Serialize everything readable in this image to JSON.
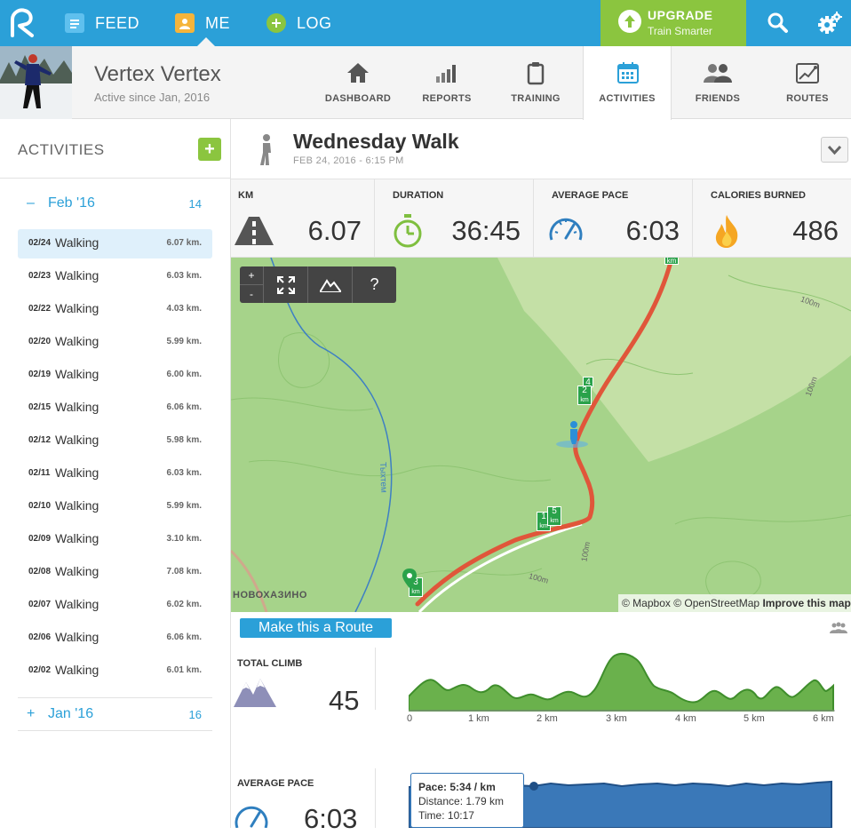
{
  "nav": {
    "feed": "FEED",
    "me": "ME",
    "log": "LOG",
    "upgrade_title": "UPGRADE",
    "upgrade_sub": "Train Smarter"
  },
  "profile": {
    "name": "Vertex Vertex",
    "since": "Active since Jan, 2016"
  },
  "tabs": [
    "DASHBOARD",
    "REPORTS",
    "TRAINING",
    "ACTIVITIES",
    "FRIENDS",
    "ROUTES"
  ],
  "sidebar": {
    "title": "ACTIVITIES",
    "add": "+",
    "feb_label": "Feb '16",
    "feb_count": "14",
    "jan_label": "Jan '16",
    "jan_count": "16",
    "activities": [
      {
        "date": "02/24",
        "type": "Walking",
        "dist": "6.07 km."
      },
      {
        "date": "02/23",
        "type": "Walking",
        "dist": "6.03 km."
      },
      {
        "date": "02/22",
        "type": "Walking",
        "dist": "4.03 km."
      },
      {
        "date": "02/20",
        "type": "Walking",
        "dist": "5.99 km."
      },
      {
        "date": "02/19",
        "type": "Walking",
        "dist": "6.00 km."
      },
      {
        "date": "02/15",
        "type": "Walking",
        "dist": "6.06 km."
      },
      {
        "date": "02/12",
        "type": "Walking",
        "dist": "5.98 km."
      },
      {
        "date": "02/11",
        "type": "Walking",
        "dist": "6.03 km."
      },
      {
        "date": "02/10",
        "type": "Walking",
        "dist": "5.99 km."
      },
      {
        "date": "02/09",
        "type": "Walking",
        "dist": "3.10 km."
      },
      {
        "date": "02/08",
        "type": "Walking",
        "dist": "7.08 km."
      },
      {
        "date": "02/07",
        "type": "Walking",
        "dist": "6.02 km."
      },
      {
        "date": "02/06",
        "type": "Walking",
        "dist": "6.06 km."
      },
      {
        "date": "02/02",
        "type": "Walking",
        "dist": "6.01 km."
      }
    ]
  },
  "activity": {
    "title": "Wednesday Walk",
    "date": "FEB 24, 2016 - 6:15 PM"
  },
  "stats": {
    "km_label": "KM",
    "km_value": "6.07",
    "duration_label": "DURATION",
    "duration_value": "36:45",
    "pace_label": "AVERAGE PACE",
    "pace_value": "6:03",
    "cal_label": "CALORIES BURNED",
    "cal_value": "486"
  },
  "map": {
    "zoom_in": "+",
    "zoom_out": "-",
    "help": "?",
    "attribution_mapbox": "© Mapbox",
    "attribution_osm": "© OpenStreetMap",
    "improve": "Improve this map",
    "place_label": "НОВОХАЗИНО",
    "river_label": "Тыхтем",
    "contour_label": "100m",
    "km_markers": [
      "km",
      "4",
      "2",
      "km",
      "1",
      "km",
      "5",
      "km",
      "3",
      "km"
    ]
  },
  "route_button": "Make this a Route",
  "climb": {
    "label": "TOTAL CLIMB",
    "value": "45",
    "ticks": [
      "0",
      "1 km",
      "2 km",
      "3 km",
      "4 km",
      "5 km",
      "6 km"
    ]
  },
  "pace_chart": {
    "label": "AVERAGE PACE",
    "value": "6:03",
    "tooltip_pace_label": "Pace:",
    "tooltip_pace": "5:34 / km",
    "tooltip_distance": "Distance: 1.79 km",
    "tooltip_time": "Time: 10:17"
  },
  "colors": {
    "brand_blue": "#2ba0d8",
    "upgrade_green": "#8bc53f",
    "map_green": "#a6d38a",
    "route_red": "#e0563a",
    "elevation_green": "#6ab14c",
    "pace_blue": "#3a78b8"
  }
}
